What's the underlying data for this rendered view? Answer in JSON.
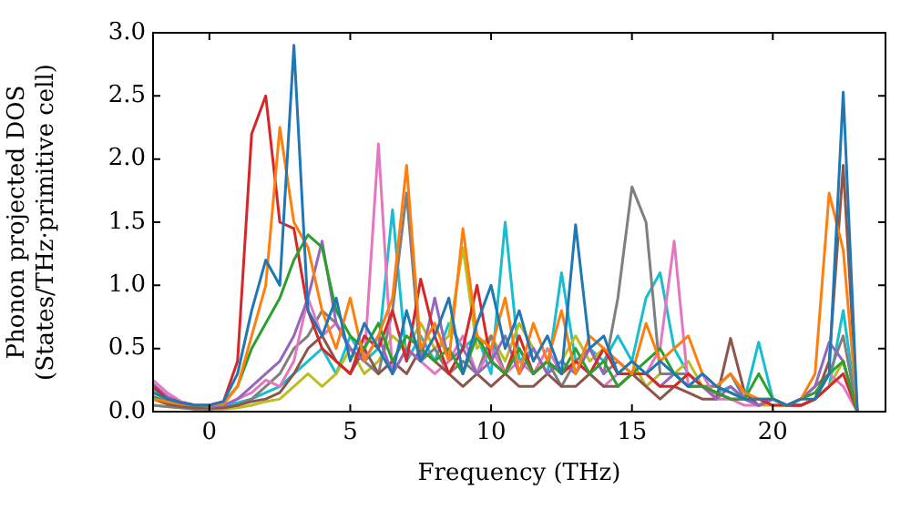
{
  "chart_data": {
    "type": "line",
    "xlabel": "Frequency (THz)",
    "ylabel": "Phonon projected DOS\n(States/THz·primitive cell)",
    "xlim": [
      -2,
      24
    ],
    "ylim": [
      0,
      3
    ],
    "xticks": [
      0,
      5,
      10,
      15,
      20
    ],
    "yticks": [
      {
        "value": 0,
        "label": "0.0"
      },
      {
        "value": 0.5,
        "label": "0.5"
      },
      {
        "value": 1,
        "label": "1.0"
      },
      {
        "value": 1.5,
        "label": "1.5"
      },
      {
        "value": 2,
        "label": "2.0"
      },
      {
        "value": 2.5,
        "label": "2.5"
      },
      {
        "value": 3,
        "label": "3.0"
      }
    ],
    "grid": false,
    "legend": false,
    "marker": "none",
    "line_style": "solid",
    "x": [
      -2,
      -1.5,
      -1,
      -0.5,
      0,
      0.5,
      1,
      1.5,
      2,
      2.5,
      3,
      3.5,
      4,
      4.5,
      5,
      5.5,
      6,
      6.5,
      7,
      7.5,
      8,
      8.5,
      9,
      9.5,
      10,
      10.5,
      11,
      11.5,
      12,
      12.5,
      13,
      13.5,
      14,
      14.5,
      15,
      15.5,
      16,
      16.5,
      17,
      17.5,
      18,
      18.5,
      19,
      19.5,
      20,
      20.5,
      21,
      21.5,
      22,
      22.5,
      23
    ],
    "series": [
      {
        "color": "#1f77b4",
        "values": [
          0.15,
          0.1,
          0.07,
          0.05,
          0.05,
          0.08,
          0.3,
          0.8,
          1.2,
          1.0,
          2.9,
          0.8,
          0.6,
          0.9,
          0.4,
          0.7,
          0.5,
          0.3,
          0.8,
          0.4,
          0.6,
          0.9,
          0.3,
          0.7,
          1.0,
          0.5,
          0.8,
          0.4,
          0.6,
          0.3,
          1.48,
          0.5,
          0.6,
          0.3,
          0.4,
          0.3,
          0.4,
          0.3,
          0.2,
          0.3,
          0.2,
          0.15,
          0.1,
          0.1,
          0.1,
          0.05,
          0.1,
          0.1,
          0.3,
          2.53,
          0
        ]
      },
      {
        "color": "#ff7f0e",
        "values": [
          0.1,
          0.08,
          0.06,
          0.05,
          0.05,
          0.06,
          0.2,
          0.6,
          1.0,
          2.25,
          1.5,
          1.3,
          0.8,
          0.5,
          0.9,
          0.4,
          0.6,
          0.9,
          1.95,
          0.5,
          0.7,
          0.4,
          1.45,
          0.6,
          0.5,
          0.9,
          0.3,
          0.7,
          0.4,
          0.8,
          0.3,
          0.6,
          0.5,
          0.4,
          0.3,
          0.7,
          0.4,
          0.5,
          0.6,
          0.3,
          0.2,
          0.3,
          0.15,
          0.1,
          0.1,
          0.05,
          0.1,
          0.3,
          1.73,
          1.28,
          0
        ]
      },
      {
        "color": "#2ca02c",
        "values": [
          0.12,
          0.08,
          0.06,
          0.05,
          0.05,
          0.07,
          0.2,
          0.5,
          0.7,
          0.9,
          1.2,
          1.4,
          1.3,
          0.8,
          0.6,
          0.5,
          0.7,
          0.4,
          0.6,
          0.5,
          0.4,
          0.5,
          0.3,
          0.6,
          0.4,
          0.3,
          0.5,
          0.3,
          0.4,
          0.3,
          0.5,
          0.3,
          0.4,
          0.2,
          0.3,
          0.4,
          0.5,
          0.3,
          0.2,
          0.2,
          0.15,
          0.1,
          0.1,
          0.3,
          0.1,
          0.05,
          0.1,
          0.15,
          0.3,
          0.4,
          0
        ]
      },
      {
        "color": "#d62728",
        "values": [
          0.2,
          0.1,
          0.07,
          0.05,
          0.05,
          0.08,
          0.4,
          2.2,
          2.5,
          1.5,
          1.45,
          0.8,
          0.5,
          0.4,
          0.3,
          0.6,
          0.5,
          0.8,
          0.4,
          1.05,
          0.6,
          0.3,
          0.5,
          1.0,
          0.4,
          0.3,
          0.6,
          0.3,
          0.4,
          0.3,
          0.4,
          0.3,
          0.5,
          0.3,
          0.3,
          0.3,
          0.2,
          0.2,
          0.3,
          0.2,
          0.15,
          0.1,
          0.1,
          0.1,
          0.05,
          0.05,
          0.05,
          0.1,
          0.2,
          0.3,
          0
        ]
      },
      {
        "color": "#9467bd",
        "values": [
          0.22,
          0.12,
          0.07,
          0.05,
          0.04,
          0.05,
          0.1,
          0.2,
          0.3,
          0.4,
          0.6,
          0.9,
          1.35,
          0.7,
          0.5,
          0.4,
          0.6,
          0.3,
          0.5,
          0.4,
          0.9,
          0.4,
          0.5,
          0.3,
          0.4,
          0.6,
          0.3,
          0.5,
          0.3,
          0.4,
          0.3,
          0.5,
          0.3,
          0.4,
          0.3,
          0.3,
          0.2,
          0.3,
          0.2,
          0.2,
          0.1,
          0.2,
          0.1,
          0.05,
          0.1,
          0.05,
          0.1,
          0.2,
          0.55,
          0.4,
          0
        ]
      },
      {
        "color": "#8c564b",
        "values": [
          0.1,
          0.06,
          0.04,
          0.03,
          0.03,
          0.03,
          0.05,
          0.08,
          0.1,
          0.15,
          0.3,
          0.5,
          0.6,
          0.4,
          0.3,
          0.5,
          0.3,
          0.4,
          0.3,
          0.5,
          0.4,
          0.3,
          0.2,
          0.3,
          0.2,
          0.3,
          0.2,
          0.2,
          0.3,
          0.2,
          0.2,
          0.3,
          0.2,
          0.2,
          0.3,
          0.2,
          0.1,
          0.2,
          0.15,
          0.1,
          0.1,
          0.58,
          0.15,
          0.05,
          0.1,
          0.05,
          0.05,
          0.1,
          0.4,
          1.95,
          0
        ]
      },
      {
        "color": "#e377c2",
        "values": [
          0.25,
          0.15,
          0.08,
          0.05,
          0.04,
          0.05,
          0.1,
          0.15,
          0.25,
          0.2,
          0.4,
          0.9,
          0.6,
          0.7,
          0.5,
          0.4,
          2.12,
          0.3,
          0.5,
          0.4,
          0.3,
          0.4,
          0.6,
          0.3,
          0.5,
          0.3,
          0.4,
          0.3,
          0.5,
          0.3,
          0.4,
          0.3,
          0.2,
          0.3,
          0.3,
          0.3,
          0.5,
          1.35,
          0.2,
          0.3,
          0.1,
          0.1,
          0.05,
          0.05,
          0.1,
          0.05,
          0.05,
          0.1,
          0.3,
          0.2,
          0
        ]
      },
      {
        "color": "#7f7f7f",
        "values": [
          0.05,
          0.04,
          0.03,
          0.02,
          0.02,
          0.03,
          0.05,
          0.1,
          0.2,
          0.3,
          0.5,
          0.6,
          0.8,
          0.7,
          0.5,
          0.4,
          0.3,
          0.8,
          1.73,
          0.4,
          0.5,
          0.3,
          0.4,
          0.3,
          0.6,
          0.3,
          0.5,
          0.3,
          0.4,
          0.2,
          0.4,
          0.5,
          0.3,
          0.9,
          1.78,
          1.5,
          0.3,
          0.3,
          0.3,
          0.2,
          0.2,
          0.3,
          0.1,
          0.05,
          0.1,
          0.05,
          0.1,
          0.2,
          0.3,
          0.6,
          0
        ]
      },
      {
        "color": "#bcbd22",
        "values": [
          0.05,
          0.04,
          0.03,
          0.02,
          0.02,
          0.02,
          0.03,
          0.05,
          0.08,
          0.1,
          0.2,
          0.3,
          0.2,
          0.3,
          0.5,
          0.3,
          0.4,
          0.6,
          0.5,
          0.7,
          0.5,
          0.6,
          1.3,
          0.5,
          0.6,
          0.4,
          0.7,
          0.5,
          0.3,
          0.4,
          0.6,
          0.4,
          0.5,
          0.3,
          0.4,
          0.2,
          0.3,
          0.3,
          0.4,
          0.2,
          0.2,
          0.15,
          0.1,
          0.05,
          0.05,
          0.05,
          0.05,
          0.1,
          0.2,
          0.4,
          0
        ]
      },
      {
        "color": "#17becf",
        "values": [
          0.18,
          0.1,
          0.06,
          0.04,
          0.04,
          0.05,
          0.07,
          0.1,
          0.15,
          0.2,
          0.3,
          0.4,
          0.5,
          0.3,
          0.6,
          0.4,
          0.5,
          1.6,
          0.4,
          0.6,
          0.4,
          0.7,
          0.5,
          0.6,
          0.3,
          1.5,
          0.4,
          0.5,
          0.3,
          1.1,
          0.4,
          0.5,
          0.4,
          0.6,
          0.4,
          0.9,
          1.1,
          0.5,
          0.3,
          0.2,
          0.15,
          0.2,
          0.1,
          0.55,
          0.1,
          0.05,
          0.05,
          0.1,
          0.2,
          0.8,
          0
        ]
      }
    ]
  }
}
